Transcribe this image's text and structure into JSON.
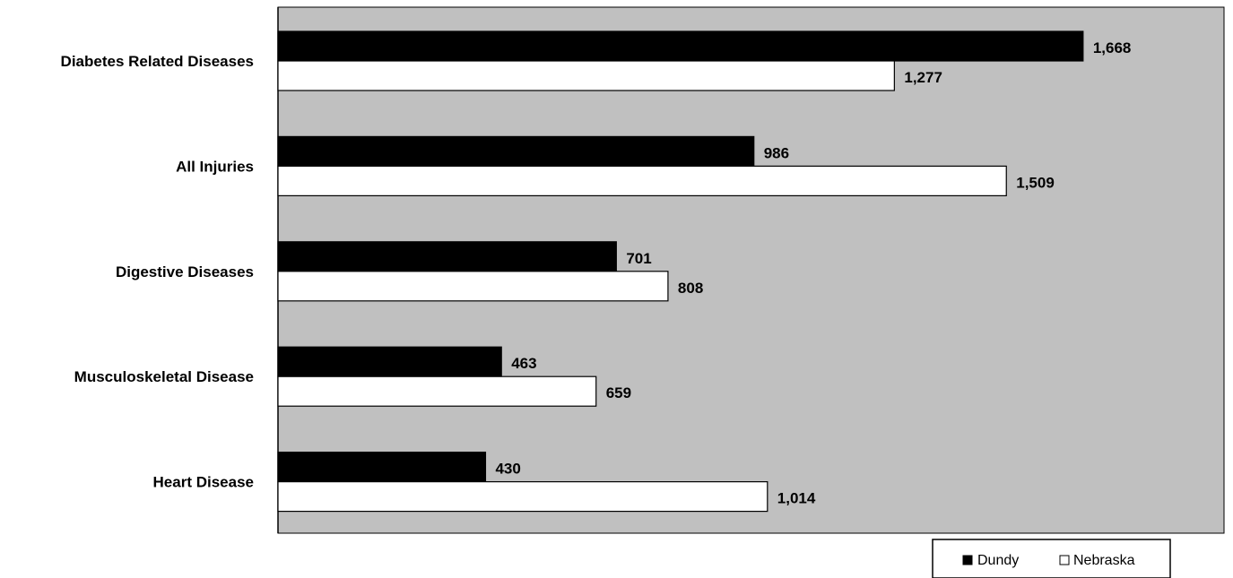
{
  "chart_data": {
    "type": "bar",
    "orientation": "horizontal",
    "categories": [
      "Diabetes Related Diseases",
      "All Injuries",
      "Digestive Diseases",
      "Musculoskeletal Disease",
      "Heart Disease"
    ],
    "series": [
      {
        "name": "Dundy",
        "values": [
          1668,
          986,
          701,
          463,
          430
        ],
        "labels": [
          "1,668",
          "986",
          "701",
          "463",
          "430"
        ],
        "color": "#000000"
      },
      {
        "name": "Nebraska",
        "values": [
          1277,
          1509,
          808,
          659,
          1014
        ],
        "labels": [
          "1,277",
          "1,509",
          "808",
          "659",
          "1,014"
        ],
        "color": "#ffffff"
      }
    ],
    "xlim": [
      0,
      1960
    ],
    "grid": false,
    "plot_background": "#c0c0c0",
    "legend_position": "bottom-right"
  }
}
